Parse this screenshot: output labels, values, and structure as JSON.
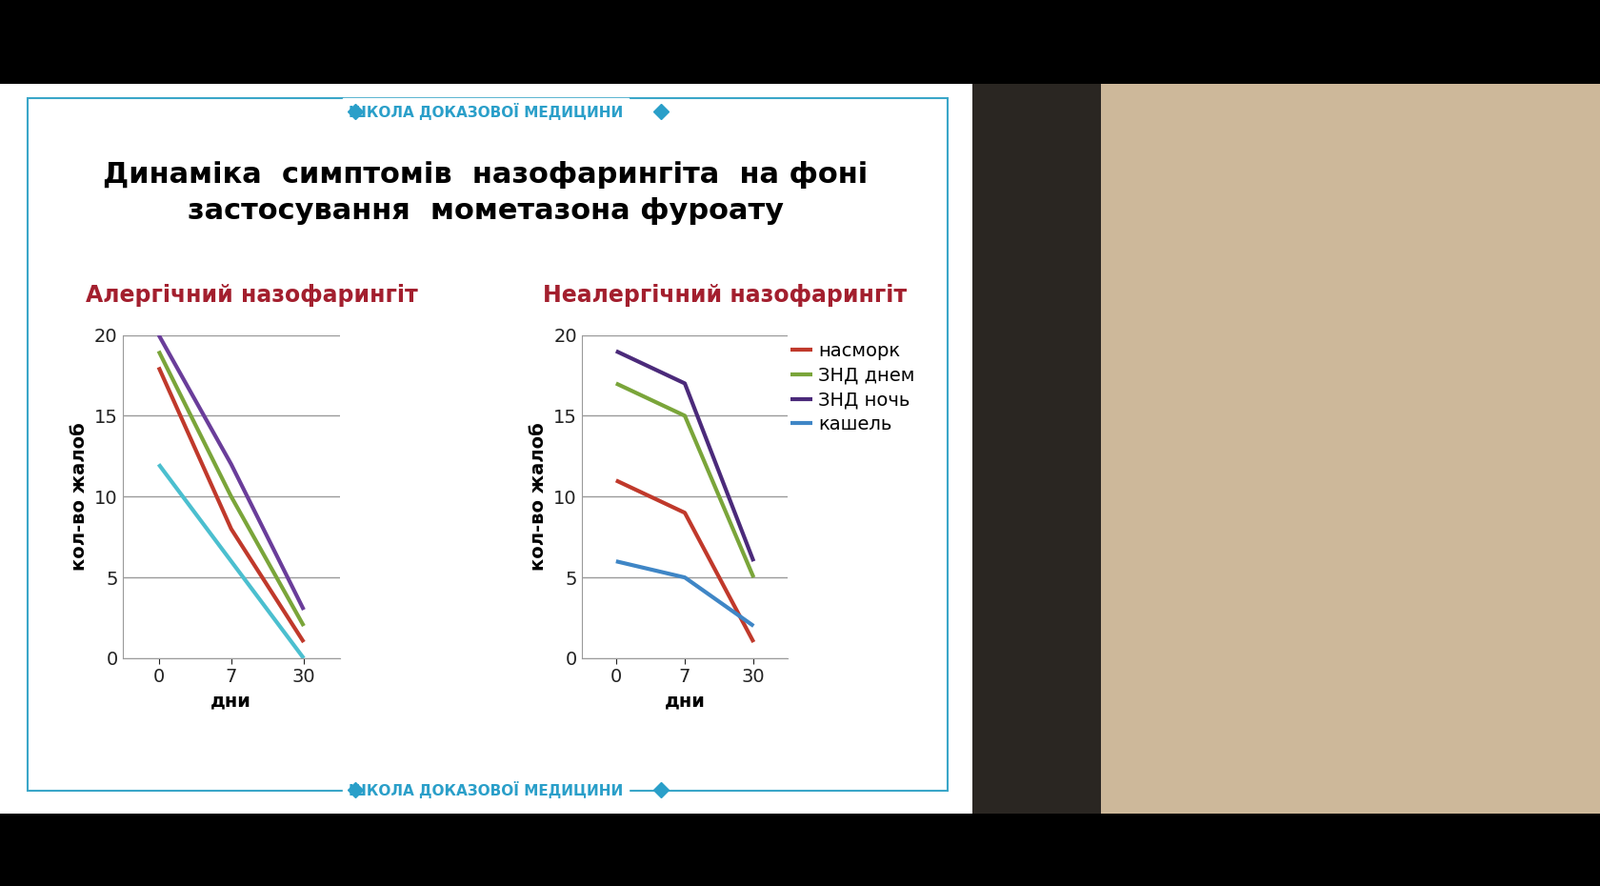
{
  "header": "ШКОЛА ДОКАЗОВОЇ МЕДИЦИНИ",
  "footer": "ШКОЛА ДОКАЗОВОЇ МЕДИЦИНИ",
  "title": "Динаміка  симптомів  назофарингіта  на фоні застосування  мометазона фуроату",
  "chart_data": [
    {
      "type": "line",
      "title": "Алергічний назофарингіт",
      "x_label": "дни",
      "y_label": "кол-во жалоб",
      "categories": [
        "0",
        "7",
        "30"
      ],
      "ylim": [
        0,
        20
      ],
      "yticks": [
        0,
        5,
        10,
        15,
        20
      ],
      "grid": true,
      "series": [
        {
          "color": "#c0392b",
          "values": [
            18,
            8,
            1
          ]
        },
        {
          "color": "#7aa53a",
          "values": [
            19,
            10,
            2
          ]
        },
        {
          "color": "#6a3d9a",
          "values": [
            20,
            12,
            3
          ]
        },
        {
          "color": "#4bbfcf",
          "values": [
            12,
            6,
            0
          ]
        }
      ]
    },
    {
      "type": "line",
      "title": "Неалергічний назофарингіт",
      "x_label": "дни",
      "y_label": "кол-во жалоб",
      "categories": [
        "0",
        "7",
        "30"
      ],
      "ylim": [
        0,
        20
      ],
      "yticks": [
        0,
        5,
        10,
        15,
        20
      ],
      "grid": true,
      "legend": "upper left",
      "series": [
        {
          "name": "насморк",
          "color": "#c0392b",
          "values": [
            11,
            9,
            1
          ]
        },
        {
          "name": "ЗНД днем",
          "color": "#7aa53a",
          "values": [
            17,
            15,
            5
          ]
        },
        {
          "name": "ЗНД ночь",
          "color": "#4b2a7a",
          "values": [
            19,
            17,
            6
          ]
        },
        {
          "name": "кашель",
          "color": "#3f86c6",
          "values": [
            6,
            5,
            2
          ]
        }
      ]
    }
  ]
}
